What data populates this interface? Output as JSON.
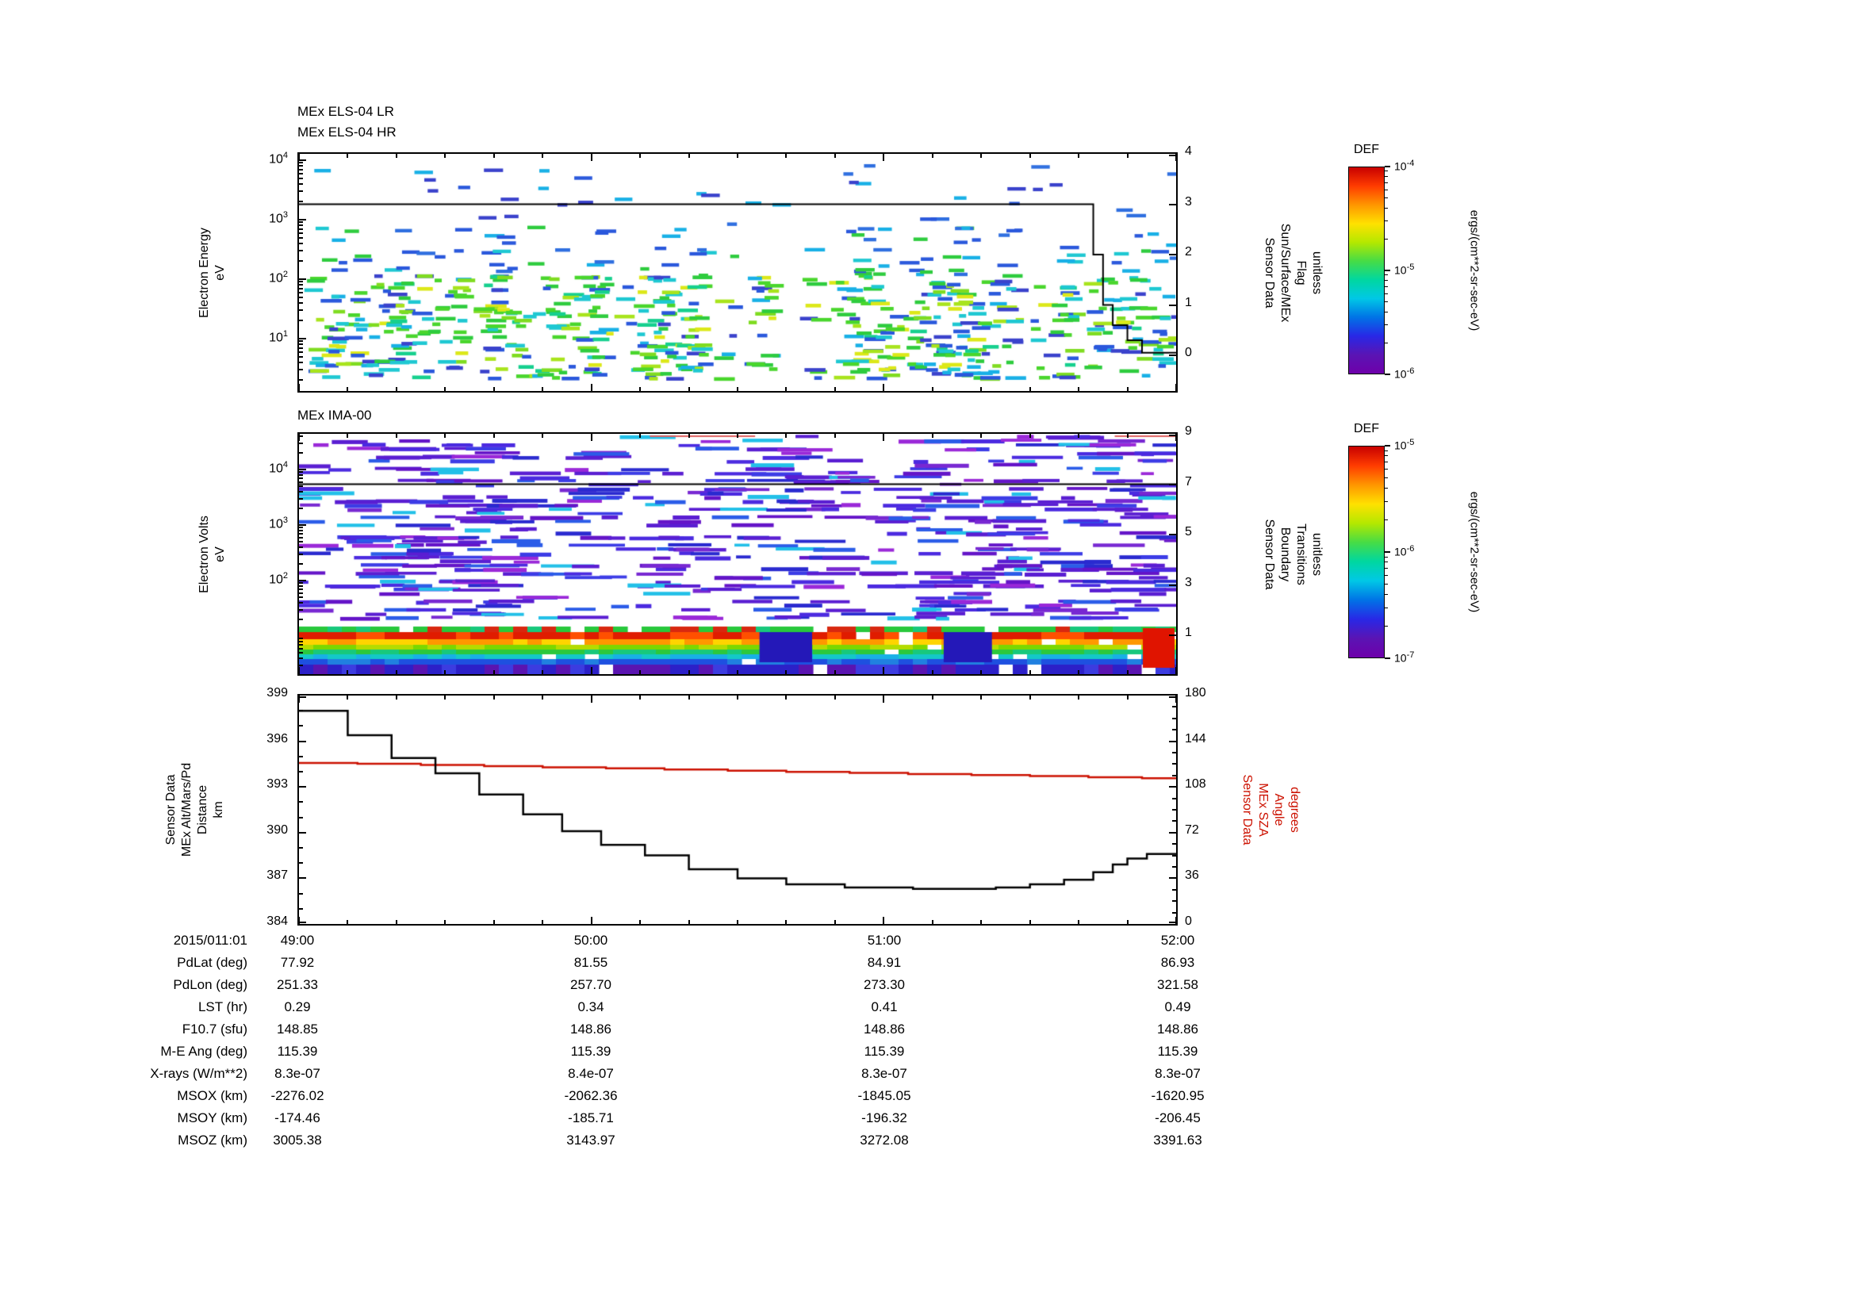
{
  "page_bg": "#ffffff",
  "xaxis": {
    "date_label": "2015/011:01",
    "tick_labels": [
      "49:00",
      "50:00",
      "51:00",
      "52:00"
    ],
    "span_seconds": 180,
    "minor_tick_seconds": 10
  },
  "chart_data": [
    {
      "type": "heatmap",
      "titles": [
        "MEx ELS-04 LR",
        "MEx ELS-04 HR"
      ],
      "ylabel_lines": [
        "Electron Energy",
        "eV"
      ],
      "y_scale": "log",
      "y_tick_exponents": [
        4,
        3,
        2,
        1
      ],
      "ylim_ev": [
        3,
        12000
      ],
      "x_ticks": [
        "49:00",
        "50:00",
        "51:00",
        "52:00"
      ],
      "right_axis": {
        "label_lines": [
          "Sensor Data",
          "Sun/Surface/MEx",
          "Flag",
          "unitless"
        ],
        "ticks": [
          "4",
          "3",
          "2",
          "1",
          "0"
        ],
        "range": [
          0,
          4
        ]
      },
      "flag_series_step_t_v": [
        [
          0,
          3
        ],
        [
          163,
          2
        ],
        [
          165,
          1
        ],
        [
          167,
          0.6
        ],
        [
          170,
          0.3
        ],
        [
          173,
          0.05
        ],
        [
          180,
          0.05
        ]
      ],
      "colorbar_index": 0,
      "content_note": "Scattered short horizontal flux dashes: dense green/cyan/yellow emission 5-100 eV, moderate blue/cyan 100-1000 eV, sparse blue dashes 1-10 keV; intermittent white time gaps."
    },
    {
      "type": "heatmap",
      "title": "MEx IMA-00",
      "ylabel_lines": [
        "Electron Volts",
        "eV"
      ],
      "y_scale": "log",
      "y_tick_exponents": [
        4,
        3,
        2
      ],
      "ylim_ev": [
        5,
        45000
      ],
      "x_ticks": [
        "49:00",
        "50:00",
        "51:00",
        "52:00"
      ],
      "right_axis": {
        "label_lines": [
          "Sensor Data",
          "Boundary",
          "Transitions",
          "unitless"
        ],
        "ticks": [
          "9",
          "7",
          "5",
          "3",
          "1"
        ],
        "range": [
          1,
          9
        ]
      },
      "flag_series_step_t_v": [
        [
          0,
          7
        ],
        [
          180,
          7
        ]
      ],
      "colorbar_index": 1,
      "content_note": "Dense violet/indigo horizontal ion bands above ~50 eV with white gaps; continuous intense low-energy band below ~30 eV layered red/orange/yellow/green/cyan/blue, dark-blue interruptions near 50:35 and 51:15, bright red patch at 52:00."
    },
    {
      "type": "line",
      "ylabel_lines": [
        "Sensor Data",
        "MEx Alt/Mars/Pd",
        "Distance",
        "km"
      ],
      "right_label_lines": [
        "Sensor Data",
        "MEx SZA",
        "Angle",
        "degrees"
      ],
      "ylim_left": [
        384,
        399
      ],
      "left_ticks": [
        "399",
        "396",
        "393",
        "390",
        "387",
        "384"
      ],
      "ylim_right": [
        0,
        180
      ],
      "right_ticks": [
        "180",
        "144",
        "108",
        "72",
        "36",
        "0"
      ],
      "x_ticks": [
        "49:00",
        "50:00",
        "51:00",
        "52:00"
      ],
      "series": [
        {
          "name": "MEx Alt/Mars/Pd Distance",
          "axis": "left",
          "color": "#000000",
          "interpolation": "step-after",
          "points_t_km": [
            [
              0,
              398.0
            ],
            [
              10,
              396.4
            ],
            [
              19,
              394.9
            ],
            [
              28,
              393.9
            ],
            [
              37,
              392.5
            ],
            [
              46,
              391.2
            ],
            [
              54,
              390.1
            ],
            [
              62,
              389.2
            ],
            [
              71,
              388.5
            ],
            [
              80,
              387.6
            ],
            [
              90,
              387.0
            ],
            [
              100,
              386.6
            ],
            [
              112,
              386.4
            ],
            [
              126,
              386.3
            ],
            [
              143,
              386.4
            ],
            [
              150,
              386.6
            ],
            [
              157,
              386.9
            ],
            [
              163,
              387.4
            ],
            [
              167,
              387.9
            ],
            [
              170,
              388.3
            ],
            [
              174,
              388.6
            ],
            [
              180,
              388.6
            ]
          ]
        },
        {
          "name": "MEx SZA Angle",
          "axis": "right",
          "color": "#cc1100",
          "interpolation": "step-after",
          "points_t_deg": [
            [
              0,
              126.8
            ],
            [
              12,
              126.2
            ],
            [
              25,
              125.3
            ],
            [
              38,
              124.4
            ],
            [
              50,
              123.5
            ],
            [
              63,
              122.6
            ],
            [
              75,
              121.7
            ],
            [
              88,
              120.8
            ],
            [
              100,
              119.9
            ],
            [
              113,
              119.0
            ],
            [
              125,
              118.2
            ],
            [
              138,
              117.3
            ],
            [
              150,
              116.5
            ],
            [
              162,
              115.7
            ],
            [
              173,
              114.9
            ],
            [
              180,
              114.5
            ]
          ]
        }
      ]
    }
  ],
  "colorbars": [
    {
      "title": "DEF",
      "tick_exponents": [
        -4,
        -5,
        -6
      ],
      "unit": "ergs/(cm**2-sr-sec-eV)",
      "stops": [
        "#c80000",
        "#ff3c00",
        "#ff9600",
        "#ffe100",
        "#b4e800",
        "#46dc46",
        "#00d7a0",
        "#00c8e6",
        "#0073e6",
        "#2828e6",
        "#5a14b4",
        "#6e00aa"
      ]
    },
    {
      "title": "DEF",
      "tick_exponents": [
        -5,
        -6,
        -7
      ],
      "unit": "ergs/(cm**2-sr-sec-eV)",
      "stops": [
        "#c80000",
        "#ff3c00",
        "#ff9600",
        "#ffe100",
        "#b4e800",
        "#46dc46",
        "#00d7a0",
        "#00c8e6",
        "#0073e6",
        "#2828e6",
        "#5a14b4",
        "#6e00aa"
      ]
    }
  ],
  "table": {
    "rows": [
      {
        "label": "PdLat (deg)",
        "values": [
          "77.92",
          "81.55",
          "84.91",
          "86.93"
        ]
      },
      {
        "label": "PdLon (deg)",
        "values": [
          "251.33",
          "257.70",
          "273.30",
          "321.58"
        ]
      },
      {
        "label": "LST (hr)",
        "values": [
          "0.29",
          "0.34",
          "0.41",
          "0.49"
        ]
      },
      {
        "label": "F10.7 (sfu)",
        "values": [
          "148.85",
          "148.86",
          "148.86",
          "148.86"
        ]
      },
      {
        "label": "M-E Ang (deg)",
        "values": [
          "115.39",
          "115.39",
          "115.39",
          "115.39"
        ]
      },
      {
        "label": "X-rays (W/m**2)",
        "values": [
          "8.3e-07",
          "8.4e-07",
          "8.3e-07",
          "8.3e-07"
        ]
      },
      {
        "label": "MSOX (km)",
        "values": [
          "-2276.02",
          "-2062.36",
          "-1845.05",
          "-1620.95"
        ]
      },
      {
        "label": "MSOY (km)",
        "values": [
          "-174.46",
          "-185.71",
          "-196.32",
          "-206.45"
        ]
      },
      {
        "label": "MSOZ (km)",
        "values": [
          "3005.38",
          "3143.97",
          "3272.08",
          "3391.63"
        ]
      }
    ]
  },
  "render_params": {
    "seed": 20150111,
    "els": {
      "columns": 62,
      "gap_probability": 0.12,
      "low_band_dashes": 13
    },
    "ima": {
      "columns": 36,
      "row_slots": 46,
      "band_height": 60,
      "dark_zones": [
        [
          0.525,
          0.585
        ],
        [
          0.735,
          0.79
        ]
      ],
      "red_blob_width": 42
    }
  }
}
